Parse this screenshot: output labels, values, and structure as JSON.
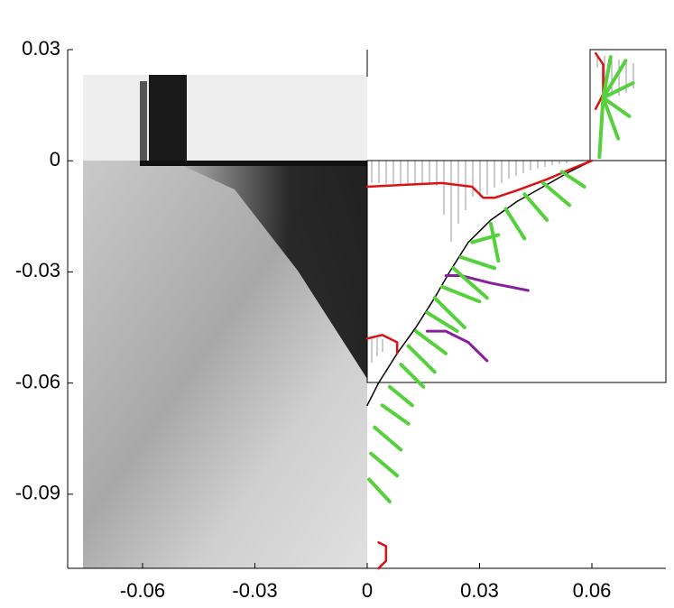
{
  "chart_data": {
    "type": "line",
    "xlim": [
      -0.08,
      0.08
    ],
    "xticks": [
      -0.06,
      -0.03,
      0,
      0.03,
      0.06
    ],
    "ylim": [
      -0.11,
      0.03
    ],
    "yticks": [
      0.03,
      0,
      -0.03,
      -0.06,
      -0.09
    ],
    "series": [
      {
        "color": "#000000",
        "width": 1.5,
        "x": [
          0,
          0.003,
          0.008,
          0.013,
          0.018,
          0.022,
          0.027,
          0.033,
          0.04,
          0.047,
          0.054,
          0.06
        ],
        "values": [
          -0.066,
          -0.06,
          -0.052,
          -0.045,
          -0.037,
          -0.03,
          -0.022,
          -0.016,
          -0.011,
          -0.007,
          -0.003,
          0
        ]
      },
      {
        "color": "#dd1111",
        "width": 2.5,
        "x": [
          0,
          0.01,
          0.02,
          0.028,
          0.031,
          0.034,
          0.04,
          0.048,
          0.055,
          0.06,
          null,
          0,
          0.004,
          0.008,
          0.008,
          null,
          0.061,
          0.063,
          0.063,
          0.061,
          null,
          0.003,
          0.005,
          0.005,
          0.003
        ],
        "values": [
          -0.007,
          -0.0065,
          -0.006,
          -0.007,
          -0.01,
          -0.01,
          -0.008,
          -0.005,
          -0.002,
          0,
          null,
          -0.048,
          -0.047,
          -0.049,
          -0.052,
          null,
          0.029,
          0.026,
          0.018,
          0.014,
          null,
          -0.103,
          -0.104,
          -0.108,
          -0.11
        ]
      },
      {
        "color": "#8a1f9e",
        "width": 3,
        "x": [
          0.021,
          0.025,
          0.033,
          0.043,
          null,
          0.016,
          0.021,
          0.027,
          0.032
        ],
        "values": [
          -0.031,
          -0.031,
          -0.033,
          -0.035,
          null,
          -0.046,
          -0.046,
          -0.049,
          -0.054
        ]
      },
      {
        "color": "#55d13c",
        "width": 4,
        "x": [
          0.052,
          0.058,
          null,
          0.047,
          0.054,
          null,
          0.042,
          0.048,
          null,
          0.037,
          0.042,
          null,
          0.033,
          0.035,
          null,
          0.028,
          0.035,
          null,
          0.025,
          0.034,
          null,
          0.023,
          0.032,
          null,
          0.02,
          0.03,
          null,
          0.018,
          0.026,
          null,
          0.016,
          0.024,
          null,
          0.013,
          0.021,
          null,
          0.011,
          0.018,
          null,
          0.009,
          0.015,
          null,
          0.006,
          0.012,
          null,
          0.004,
          0.011,
          null,
          0.002,
          0.009,
          null,
          0.001,
          0.008,
          null,
          0.0005,
          0.006,
          null,
          0.063,
          0.069,
          null,
          0.063,
          0.071,
          null,
          0.063,
          0.07,
          null,
          0.063,
          0.067,
          null,
          0.063,
          0.065,
          null,
          0.063,
          0.062
        ],
        "values": [
          -0.003,
          -0.007,
          null,
          -0.006,
          -0.012,
          null,
          -0.009,
          -0.016,
          null,
          -0.013,
          -0.021,
          null,
          -0.017,
          -0.027,
          null,
          -0.022,
          -0.02,
          null,
          -0.026,
          -0.029,
          null,
          -0.029,
          -0.037,
          null,
          -0.034,
          -0.038,
          null,
          -0.037,
          -0.045,
          null,
          -0.041,
          -0.046,
          null,
          -0.046,
          -0.052,
          null,
          -0.05,
          -0.057,
          null,
          -0.055,
          -0.061,
          null,
          -0.061,
          -0.066,
          null,
          -0.066,
          -0.071,
          null,
          -0.072,
          -0.078,
          null,
          -0.079,
          -0.085,
          null,
          -0.086,
          -0.092,
          null,
          0.017,
          0.027,
          null,
          0.017,
          0.021,
          null,
          0.017,
          0.012,
          null,
          0.017,
          0.006,
          null,
          0.017,
          0.028,
          null,
          0.017,
          0.001
        ]
      }
    ]
  }
}
